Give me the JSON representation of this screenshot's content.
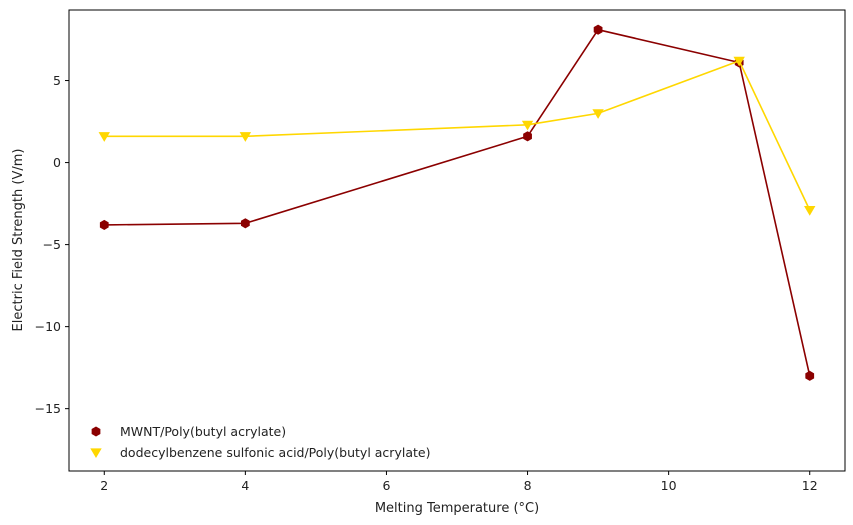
{
  "chart_data": {
    "type": "line",
    "title": "",
    "xlabel": "Melting Temperature (°C)",
    "ylabel": "Electric Field Strength (V/m)",
    "x": [
      2,
      4,
      8,
      9,
      11,
      12
    ],
    "xlim": [
      1.5,
      12.5
    ],
    "ylim": [
      -18.8,
      9.3
    ],
    "xticks": [
      2,
      4,
      6,
      8,
      10,
      12
    ],
    "yticks": [
      5,
      0,
      -5,
      -10,
      -15
    ],
    "ytick_labels": [
      "5",
      "0",
      "−5",
      "−10",
      "−15"
    ],
    "grid": false,
    "legend_position": "lower-left",
    "series": [
      {
        "name": "MWNT/Poly(butyl acrylate)",
        "color": "#8b0000",
        "marker": "hexagon",
        "values": [
          -3.8,
          -3.7,
          1.6,
          8.1,
          6.1,
          -13.0
        ]
      },
      {
        "name": "dodecylbenzene sulfonic acid/Poly(butyl acrylate)",
        "color": "#ffd700",
        "marker": "triangle-down",
        "values": [
          1.6,
          1.6,
          2.3,
          3.0,
          6.2,
          -2.9
        ]
      }
    ]
  }
}
